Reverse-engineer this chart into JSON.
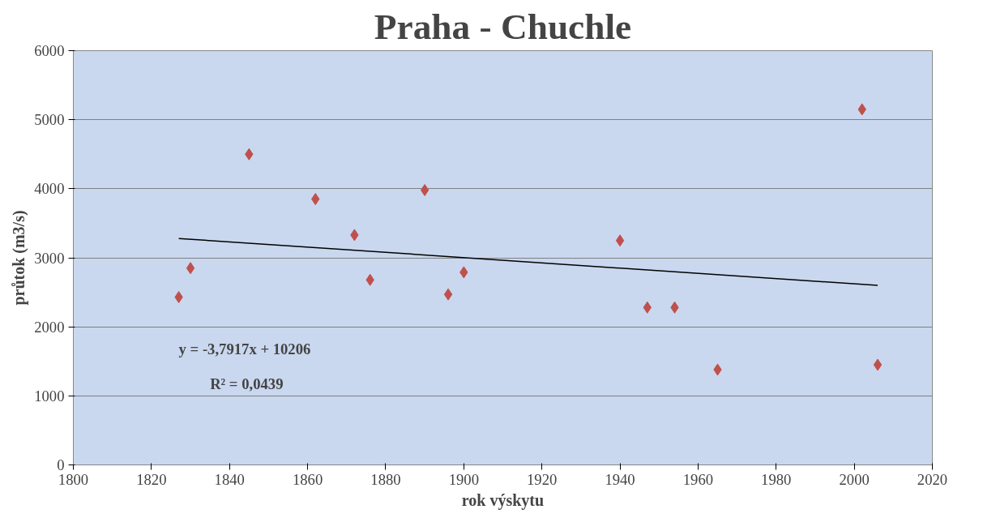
{
  "chart_data": {
    "type": "scatter",
    "title": "Praha - Chuchle",
    "xlabel": "rok výskytu",
    "ylabel": "průtok (m3/s)",
    "xlim": [
      1800,
      2020
    ],
    "xticks": [
      1800,
      1820,
      1840,
      1860,
      1880,
      1900,
      1920,
      1940,
      1960,
      1980,
      2000,
      2020
    ],
    "ylim": [
      0,
      6000
    ],
    "yticks": [
      0,
      1000,
      2000,
      3000,
      4000,
      5000,
      6000
    ],
    "grid": "y",
    "marker": "diamond",
    "series": [
      {
        "color": "#c0504d",
        "x": [
          1827,
          1830,
          1845,
          1862,
          1872,
          1876,
          1890,
          1896,
          1900,
          1940,
          1947,
          1954,
          1965,
          2002,
          2006
        ],
        "values": [
          2430,
          2850,
          4500,
          3850,
          3330,
          2680,
          3980,
          2470,
          2790,
          3250,
          2280,
          2280,
          1380,
          5150,
          1450
        ]
      },
      {
        "type": "line",
        "color": "#000000",
        "marker": "none",
        "x": [
          1827,
          2006
        ],
        "values": [
          3280,
          2600
        ]
      }
    ],
    "annotations": [
      "y = -3,7917x + 10206",
      "R² = 0,0439"
    ]
  }
}
